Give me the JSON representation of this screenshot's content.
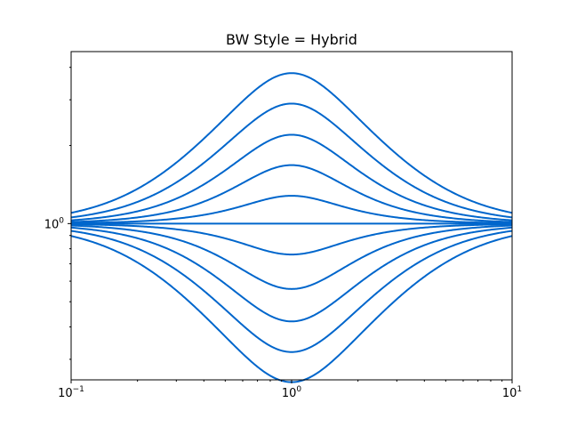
{
  "chart_data": {
    "type": "line",
    "title": "BW Style = Hybrid",
    "xlabel": "",
    "ylabel": "",
    "xscale": "log",
    "yscale": "log",
    "xlim": [
      0.1,
      10
    ],
    "ylim": [
      0.25,
      4.6
    ],
    "grid": false,
    "legend": "none",
    "line_color": "#0066cc",
    "x_ticks": [
      {
        "value": 0.1,
        "base": "10",
        "exp": "−1"
      },
      {
        "value": 1,
        "base": "10",
        "exp": "0"
      },
      {
        "value": 10,
        "base": "10",
        "exp": "1"
      }
    ],
    "y_ticks": [
      {
        "value": 1,
        "base": "10",
        "exp": "0"
      }
    ],
    "model": "peaking filter magnitude |H(jw)| with center frequency 1",
    "series": [
      {
        "peak_gain": 3.8
      },
      {
        "peak_gain": 2.9
      },
      {
        "peak_gain": 2.2
      },
      {
        "peak_gain": 1.68
      },
      {
        "peak_gain": 1.28
      },
      {
        "peak_gain": 1.0
      },
      {
        "peak_gain": 0.76
      },
      {
        "peak_gain": 0.56
      },
      {
        "peak_gain": 0.42
      },
      {
        "peak_gain": 0.32
      },
      {
        "peak_gain": 0.245
      }
    ]
  }
}
